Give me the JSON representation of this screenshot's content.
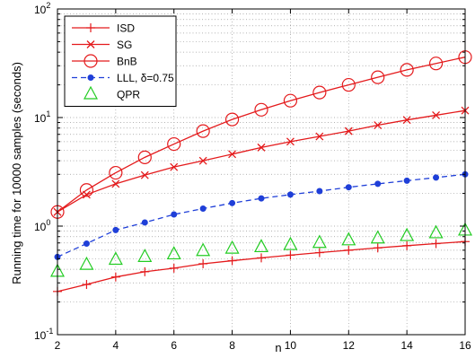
{
  "chart_data": {
    "type": "line",
    "xlabel": "n",
    "ylabel": "Running time for 10000 samples (seconds)",
    "xlim": [
      2,
      16
    ],
    "ylim": [
      0.1,
      100
    ],
    "yscale": "log",
    "grid": true,
    "legend_position": "top-left",
    "x_ticks": [
      2,
      4,
      6,
      8,
      10,
      12,
      14,
      16
    ],
    "x_tick_labels": [
      "2",
      "4",
      "6",
      "8",
      "10",
      "12",
      "14",
      "16"
    ],
    "y_ticks": [
      0.1,
      1,
      10,
      100
    ],
    "y_tick_labels": [
      {
        "base": "10",
        "exp": "-1"
      },
      {
        "base": "10",
        "exp": "0"
      },
      {
        "base": "10",
        "exp": "1"
      },
      {
        "base": "10",
        "exp": "2"
      }
    ],
    "x": [
      2,
      3,
      4,
      5,
      6,
      7,
      8,
      9,
      10,
      11,
      12,
      13,
      14,
      15,
      16
    ],
    "series": [
      {
        "name": "ISD",
        "color": "#e41a1c",
        "line": "solid",
        "marker": "plus",
        "values": [
          0.25,
          0.29,
          0.34,
          0.38,
          0.41,
          0.45,
          0.48,
          0.51,
          0.54,
          0.57,
          0.6,
          0.63,
          0.66,
          0.69,
          0.72
        ]
      },
      {
        "name": "SG",
        "color": "#e41a1c",
        "line": "solid",
        "marker": "cross",
        "values": [
          1.35,
          1.95,
          2.45,
          2.95,
          3.5,
          4.0,
          4.6,
          5.3,
          6.0,
          6.7,
          7.5,
          8.5,
          9.5,
          10.5,
          11.6
        ]
      },
      {
        "name": "BnB",
        "color": "#e41a1c",
        "line": "solid",
        "marker": "circle",
        "values": [
          1.35,
          2.15,
          3.1,
          4.3,
          5.7,
          7.5,
          9.6,
          11.8,
          14.3,
          17.0,
          20.0,
          23.5,
          27.5,
          31.5,
          36.0
        ]
      },
      {
        "name": "LLL, δ=0.75",
        "color": "#1f3fd8",
        "line": "dashed",
        "marker": "dot",
        "values": [
          0.52,
          0.69,
          0.92,
          1.08,
          1.28,
          1.45,
          1.63,
          1.8,
          1.95,
          2.1,
          2.28,
          2.45,
          2.62,
          2.8,
          3.0
        ]
      },
      {
        "name": "QPR",
        "color": "#22cc22",
        "line": "none",
        "marker": "triangle",
        "values": [
          0.38,
          0.44,
          0.49,
          0.52,
          0.55,
          0.59,
          0.62,
          0.64,
          0.67,
          0.7,
          0.74,
          0.77,
          0.81,
          0.86,
          0.91
        ]
      }
    ]
  }
}
